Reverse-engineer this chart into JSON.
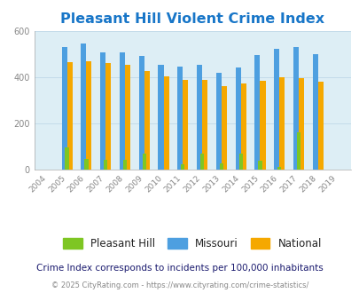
{
  "title": "Pleasant Hill Violent Crime Index",
  "years": [
    2004,
    2005,
    2006,
    2007,
    2008,
    2009,
    2010,
    2011,
    2012,
    2013,
    2014,
    2015,
    2016,
    2017,
    2018,
    2019
  ],
  "pleasant_hill": [
    0,
    97,
    47,
    45,
    45,
    70,
    0,
    25,
    72,
    28,
    72,
    38,
    12,
    162,
    0,
    0
  ],
  "missouri": [
    0,
    528,
    545,
    505,
    505,
    490,
    452,
    447,
    452,
    417,
    442,
    497,
    522,
    528,
    498,
    0
  ],
  "national": [
    0,
    464,
    468,
    462,
    452,
    428,
    403,
    387,
    387,
    363,
    372,
    383,
    398,
    396,
    381,
    0
  ],
  "ph_color": "#7ec623",
  "mo_color": "#4d9fe0",
  "nat_color": "#f5a800",
  "bg_color": "#ddeef5",
  "ylim": [
    0,
    600
  ],
  "yticks": [
    0,
    200,
    400,
    600
  ],
  "title_color": "#1876c8",
  "title_fontsize": 11.5,
  "subtitle": "Crime Index corresponds to incidents per 100,000 inhabitants",
  "footer": "© 2025 CityRating.com - https://www.cityrating.com/crime-statistics/",
  "legend_labels": [
    "Pleasant Hill",
    "Missouri",
    "National"
  ],
  "bar_width": 0.28,
  "grid_color": "#c0d8e8",
  "tick_color": "#888888",
  "subtitle_color": "#1a1a6e",
  "footer_color": "#888888"
}
